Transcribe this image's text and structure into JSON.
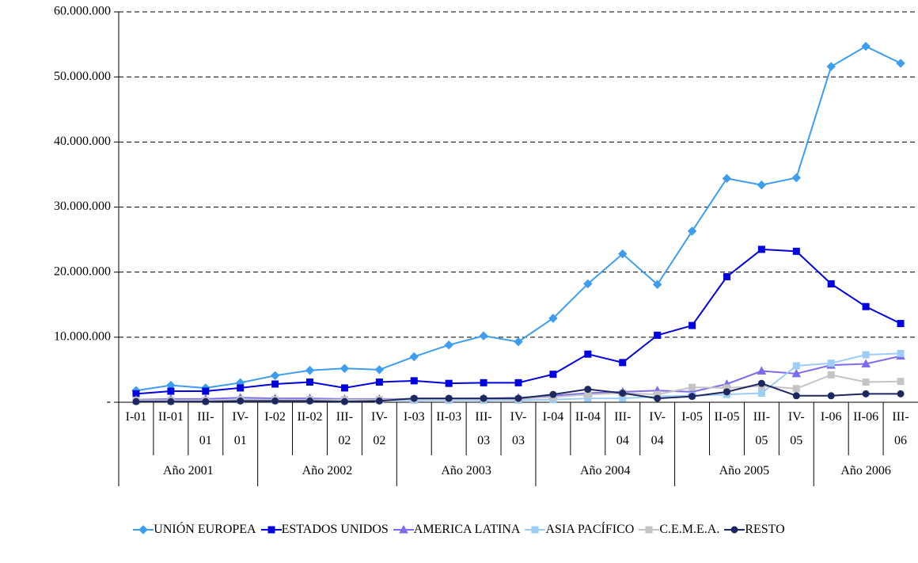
{
  "chart_data": {
    "type": "line",
    "categories": [
      "I-01",
      "II-01",
      "III-01",
      "IV-01",
      "I-02",
      "II-02",
      "III-02",
      "IV-02",
      "I-03",
      "II-03",
      "III-03",
      "IV-03",
      "I-04",
      "II-04",
      "III-04",
      "IV-04",
      "I-05",
      "II-05",
      "III-05",
      "IV-05",
      "I-06",
      "II-06",
      "III-06"
    ],
    "groups": [
      "Año 2001",
      "Año 2002",
      "Año 2003",
      "Año 2004",
      "Año 2005",
      "Año 2006"
    ],
    "series": [
      {
        "name": "UNIÓN EUROPEA",
        "color": "#3d9df0",
        "marker": "diamond",
        "values": [
          1800000,
          2600000,
          2200000,
          3000000,
          4100000,
          4900000,
          5200000,
          5000000,
          7000000,
          8800000,
          10200000,
          9300000,
          12900000,
          18200000,
          22800000,
          18100000,
          26300000,
          34400000,
          33400000,
          34500000,
          51600000,
          54700000,
          52100000
        ]
      },
      {
        "name": "ESTADOS UNIDOS",
        "color": "#0000e0",
        "marker": "square",
        "values": [
          1300000,
          1700000,
          1700000,
          2200000,
          2800000,
          3100000,
          2200000,
          3100000,
          3300000,
          2900000,
          3000000,
          3000000,
          4300000,
          7400000,
          6100000,
          10300000,
          11800000,
          19300000,
          23500000,
          23200000,
          18200000,
          14700000,
          12100000
        ]
      },
      {
        "name": "AMERICA LATINA",
        "color": "#7b6cf0",
        "marker": "triangle",
        "values": [
          400000,
          500000,
          500000,
          700000,
          600000,
          600000,
          500000,
          500000,
          500000,
          500000,
          600000,
          700000,
          1000000,
          1400000,
          1600000,
          1800000,
          1600000,
          2800000,
          4800000,
          4400000,
          5700000,
          5900000,
          7100000
        ]
      },
      {
        "name": "ASIA PACÍFICO",
        "color": "#9dcdf7",
        "marker": "square",
        "values": [
          200000,
          200000,
          200000,
          300000,
          300000,
          300000,
          300000,
          300000,
          300000,
          300000,
          300000,
          300000,
          400000,
          600000,
          600000,
          900000,
          1000000,
          1200000,
          1400000,
          5600000,
          6000000,
          7300000,
          7500000
        ]
      },
      {
        "name": "C.E.M.E.A.",
        "color": "#c4c4c4",
        "marker": "square",
        "values": [
          300000,
          300000,
          300000,
          400000,
          400000,
          400000,
          400000,
          400000,
          500000,
          500000,
          500000,
          500000,
          800000,
          1200000,
          1400000,
          1200000,
          2300000,
          2200000,
          2500000,
          2100000,
          4200000,
          3100000,
          3200000
        ]
      },
      {
        "name": "RESTO",
        "color": "#1e2860",
        "marker": "circle",
        "values": [
          100000,
          100000,
          100000,
          200000,
          200000,
          200000,
          100000,
          200000,
          600000,
          600000,
          600000,
          600000,
          1200000,
          2000000,
          1400000,
          600000,
          900000,
          1600000,
          2900000,
          1000000,
          1000000,
          1300000,
          1300000
        ]
      }
    ],
    "ylim": [
      0,
      60000000
    ],
    "yticks": [
      {
        "value": 0,
        "label": "-"
      },
      {
        "value": 10000000,
        "label": "10.000.000"
      },
      {
        "value": 20000000,
        "label": "20.000.000"
      },
      {
        "value": 30000000,
        "label": "30.000.000"
      },
      {
        "value": 40000000,
        "label": "40.000.000"
      },
      {
        "value": 50000000,
        "label": "50.000.000"
      },
      {
        "value": 60000000,
        "label": "60.000.000"
      }
    ],
    "grid": true,
    "legend": "bottom"
  }
}
